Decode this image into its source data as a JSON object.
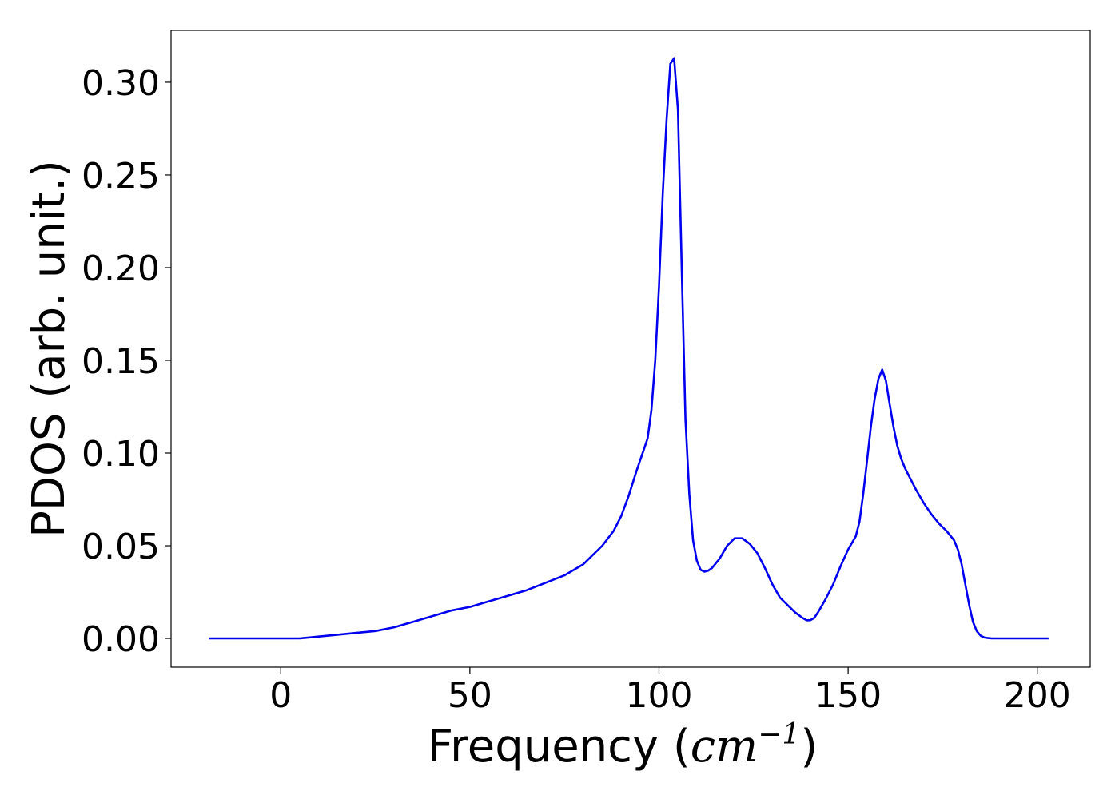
{
  "chart_data": {
    "type": "line",
    "title": "",
    "xlabel_text": "Frequency (",
    "xlabel_math": "cm",
    "xlabel_sup": "−1",
    "xlabel_close": ")",
    "ylabel": "PDOS (arb. unit.)",
    "xlim": [
      -29,
      214
    ],
    "ylim": [
      -0.0155,
      0.328
    ],
    "xticks": [
      0,
      50,
      100,
      150,
      200
    ],
    "xtick_labels": [
      "0",
      "50",
      "100",
      "150",
      "200"
    ],
    "yticks": [
      0,
      0.05,
      0.1,
      0.15,
      0.2,
      0.25,
      0.3
    ],
    "ytick_labels": [
      "0.00",
      "0.05",
      "0.10",
      "0.15",
      "0.20",
      "0.25",
      "0.30"
    ],
    "grid": false,
    "legend": "none",
    "series": [
      {
        "color": "#0000ee",
        "x": [
          -19,
          -10,
          0,
          5,
          10,
          15,
          20,
          25,
          30,
          35,
          40,
          45,
          50,
          55,
          60,
          65,
          70,
          75,
          80,
          85,
          88,
          90,
          92,
          94,
          96,
          97,
          98,
          99,
          100,
          101,
          102,
          103,
          104,
          105,
          106,
          107,
          108,
          109,
          110,
          111,
          112,
          113,
          114,
          116,
          118,
          120,
          122,
          124,
          126,
          128,
          130,
          132,
          134,
          136,
          138,
          139,
          140,
          141,
          142,
          144,
          146,
          148,
          150,
          152,
          153,
          154,
          155,
          156,
          157,
          158,
          159,
          160,
          161,
          162,
          163,
          164,
          165,
          166,
          168,
          170,
          172,
          174,
          176,
          178,
          179,
          180,
          181,
          182,
          183,
          184,
          185,
          186,
          187,
          188,
          189,
          190,
          192,
          195,
          200,
          203
        ],
        "y": [
          0,
          0,
          0,
          0,
          0.001,
          0.002,
          0.003,
          0.004,
          0.006,
          0.009,
          0.012,
          0.015,
          0.017,
          0.02,
          0.023,
          0.026,
          0.03,
          0.034,
          0.04,
          0.05,
          0.058,
          0.066,
          0.077,
          0.09,
          0.102,
          0.108,
          0.123,
          0.15,
          0.19,
          0.24,
          0.28,
          0.31,
          0.313,
          0.285,
          0.2,
          0.118,
          0.078,
          0.053,
          0.042,
          0.037,
          0.036,
          0.0365,
          0.038,
          0.043,
          0.05,
          0.054,
          0.054,
          0.051,
          0.046,
          0.038,
          0.029,
          0.022,
          0.018,
          0.014,
          0.011,
          0.0098,
          0.0098,
          0.011,
          0.014,
          0.021,
          0.029,
          0.039,
          0.048,
          0.055,
          0.063,
          0.078,
          0.096,
          0.114,
          0.129,
          0.14,
          0.145,
          0.139,
          0.126,
          0.114,
          0.104,
          0.097,
          0.092,
          0.088,
          0.08,
          0.073,
          0.067,
          0.062,
          0.058,
          0.053,
          0.048,
          0.04,
          0.029,
          0.018,
          0.009,
          0.004,
          0.0015,
          0.0005,
          0.0002,
          0,
          0,
          0,
          0,
          0,
          0,
          0
        ]
      }
    ]
  }
}
